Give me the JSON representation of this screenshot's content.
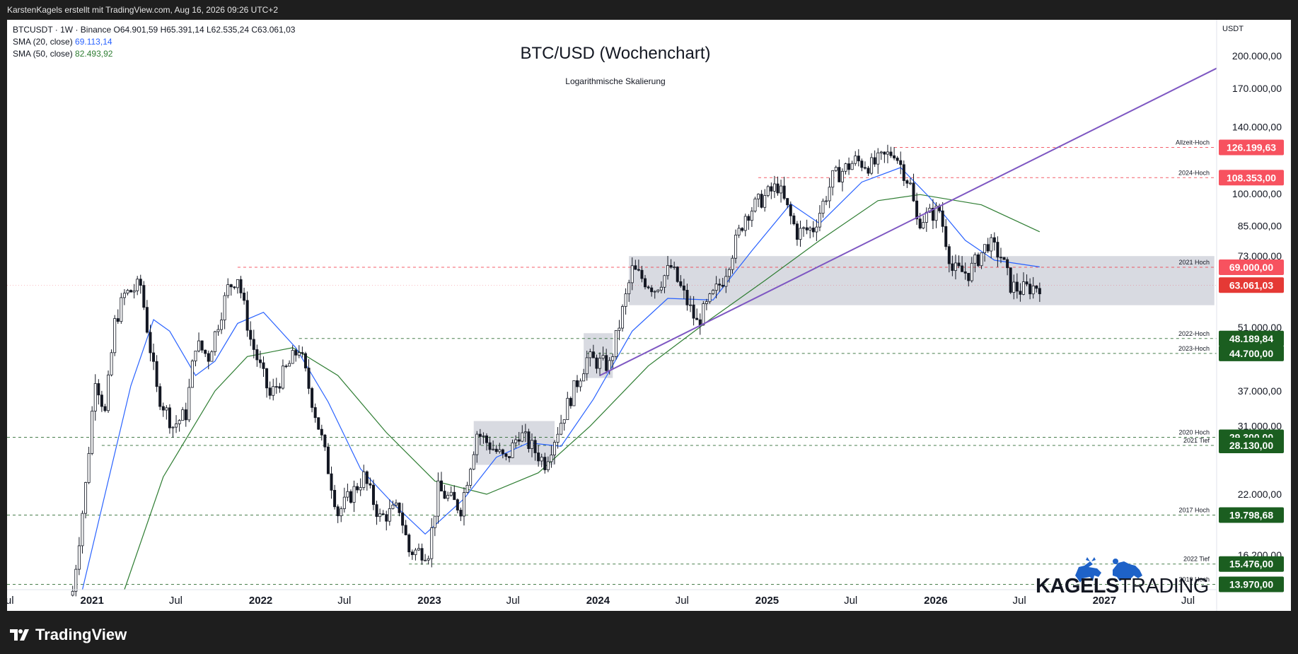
{
  "header": {
    "attribution": "KarstenKagels erstellt mit TradingView.com, Aug 16, 2026 09:26 UTC+2"
  },
  "legend": {
    "symbol_line": "BTCUSDT · 1W · Binance",
    "ohlc": {
      "open": "O64.901,59",
      "high": "H65.391,14",
      "low": "L62.535,24",
      "close": "C63.061,03"
    },
    "sma20_label": "SMA (20, close)",
    "sma20_value": "69.113,14",
    "sma50_label": "SMA (50, close)",
    "sma50_value": "82.493,92"
  },
  "colors": {
    "up": "#089981",
    "down": "#f23645",
    "candle": "#131722",
    "sma20": "#2962ff",
    "sma50": "#2e7d32",
    "trendline": "#7e57c2",
    "resistance": "#f23645",
    "support": "#1b5e20",
    "zone": "#d1d4dc"
  },
  "chart_data": {
    "type": "line",
    "title": "BTC/USD (Wochenchart)",
    "subtitle": "Logarithmische Skalierung",
    "scale": "log",
    "currency": "USDT",
    "price_axis_ticks": [
      200000,
      170000,
      140000,
      100000,
      85000,
      73000,
      51000,
      37000,
      31000,
      22000,
      16200
    ],
    "price_axis_tick_labels": [
      "200.000,00",
      "170.000,00",
      "140.000,00",
      "100.000,00",
      "85.000,00",
      "73.000,00",
      "51.000,00",
      "37.000,00",
      "31.000,00",
      "22.000,00",
      "16.200,00"
    ],
    "time_axis_ticks": [
      {
        "label": "Jul",
        "date": "2020-07-01",
        "bold": false
      },
      {
        "label": "2021",
        "date": "2021-01-01",
        "bold": true
      },
      {
        "label": "Jul",
        "date": "2021-07-01",
        "bold": false
      },
      {
        "label": "2022",
        "date": "2022-01-01",
        "bold": true
      },
      {
        "label": "Jul",
        "date": "2022-07-01",
        "bold": false
      },
      {
        "label": "2023",
        "date": "2023-01-01",
        "bold": true
      },
      {
        "label": "Jul",
        "date": "2023-07-01",
        "bold": false
      },
      {
        "label": "2024",
        "date": "2024-01-01",
        "bold": true
      },
      {
        "label": "Jul",
        "date": "2024-07-01",
        "bold": false
      },
      {
        "label": "2025",
        "date": "2025-01-01",
        "bold": true
      },
      {
        "label": "Jul",
        "date": "2025-07-01",
        "bold": false
      },
      {
        "label": "2026",
        "date": "2026-01-01",
        "bold": true
      },
      {
        "label": "Jul",
        "date": "2026-07-01",
        "bold": false
      },
      {
        "label": "2027",
        "date": "2027-01-01",
        "bold": true
      },
      {
        "label": "Jul",
        "date": "2027-07-01",
        "bold": false
      }
    ],
    "x_range": [
      "2020-07-01",
      "2027-09-01"
    ],
    "y_range": [
      13600,
      240000
    ],
    "price_path": [
      [
        "2020-11-20",
        13500
      ],
      [
        "2020-12-18",
        23000
      ],
      [
        "2021-01-08",
        40000
      ],
      [
        "2021-01-29",
        33000
      ],
      [
        "2021-02-19",
        52000
      ],
      [
        "2021-03-12",
        60000
      ],
      [
        "2021-04-16",
        63000
      ],
      [
        "2021-05-21",
        37000
      ],
      [
        "2021-06-25",
        31000
      ],
      [
        "2021-07-23",
        33000
      ],
      [
        "2021-08-13",
        47000
      ],
      [
        "2021-09-10",
        44000
      ],
      [
        "2021-10-22",
        62000
      ],
      [
        "2021-11-12",
        66000
      ],
      [
        "2021-12-10",
        48000
      ],
      [
        "2022-01-21",
        36000
      ],
      [
        "2022-03-25",
        46000
      ],
      [
        "2022-05-13",
        29000
      ],
      [
        "2022-06-17",
        20000
      ],
      [
        "2022-08-12",
        24000
      ],
      [
        "2022-09-16",
        19500
      ],
      [
        "2022-10-28",
        20500
      ],
      [
        "2022-11-18",
        16500
      ],
      [
        "2022-12-30",
        16500
      ],
      [
        "2023-01-20",
        22500
      ],
      [
        "2023-03-10",
        20500
      ],
      [
        "2023-04-14",
        30000
      ],
      [
        "2023-06-16",
        26000
      ],
      [
        "2023-07-14",
        30000
      ],
      [
        "2023-09-08",
        25800
      ],
      [
        "2023-10-27",
        34500
      ],
      [
        "2023-12-08",
        43500
      ],
      [
        "2024-01-26",
        42000
      ],
      [
        "2024-03-15",
        68000
      ],
      [
        "2024-05-03",
        62000
      ],
      [
        "2024-06-07",
        69000
      ],
      [
        "2024-08-02",
        52000
      ],
      [
        "2024-09-27",
        65000
      ],
      [
        "2024-11-15",
        90000
      ],
      [
        "2024-12-20",
        97000
      ],
      [
        "2025-01-24",
        104000
      ],
      [
        "2025-03-07",
        82000
      ],
      [
        "2025-04-11",
        84000
      ],
      [
        "2025-05-23",
        108000
      ],
      [
        "2025-07-11",
        118000
      ],
      [
        "2025-08-15",
        115000
      ],
      [
        "2025-10-03",
        124000
      ],
      [
        "2025-11-07",
        104000
      ],
      [
        "2025-11-21",
        87000
      ],
      [
        "2026-01-09",
        92000
      ],
      [
        "2026-02-06",
        68000
      ],
      [
        "2026-03-13",
        67000
      ],
      [
        "2026-04-24",
        78000
      ],
      [
        "2026-05-22",
        73000
      ],
      [
        "2026-06-12",
        63000
      ],
      [
        "2026-07-03",
        61500
      ],
      [
        "2026-08-14",
        63061
      ]
    ],
    "sma20": [
      [
        "2020-12-11",
        13600
      ],
      [
        "2021-01-29",
        22000
      ],
      [
        "2021-03-26",
        38000
      ],
      [
        "2021-05-14",
        53000
      ],
      [
        "2021-06-18",
        50000
      ],
      [
        "2021-08-13",
        40000
      ],
      [
        "2021-09-24",
        43000
      ],
      [
        "2021-11-12",
        52000
      ],
      [
        "2022-01-07",
        55000
      ],
      [
        "2022-03-18",
        46000
      ],
      [
        "2022-05-27",
        35000
      ],
      [
        "2022-08-05",
        25000
      ],
      [
        "2022-10-14",
        21000
      ],
      [
        "2022-12-23",
        18000
      ],
      [
        "2023-03-17",
        21500
      ],
      [
        "2023-05-26",
        26500
      ],
      [
        "2023-08-04",
        28500
      ],
      [
        "2023-10-13",
        28000
      ],
      [
        "2023-12-22",
        35500
      ],
      [
        "2024-03-15",
        50000
      ],
      [
        "2024-05-31",
        59000
      ],
      [
        "2024-09-06",
        58500
      ],
      [
        "2024-11-29",
        75000
      ],
      [
        "2025-02-21",
        95000
      ],
      [
        "2025-04-25",
        86000
      ],
      [
        "2025-07-25",
        106000
      ],
      [
        "2025-10-17",
        114000
      ],
      [
        "2025-12-19",
        98000
      ],
      [
        "2026-03-06",
        79000
      ],
      [
        "2026-05-08",
        71500
      ],
      [
        "2026-08-14",
        69113
      ]
    ],
    "sma50": [
      [
        "2021-03-12",
        13600
      ],
      [
        "2021-06-04",
        24000
      ],
      [
        "2021-09-24",
        37000
      ],
      [
        "2021-12-03",
        44000
      ],
      [
        "2022-03-11",
        46000
      ],
      [
        "2022-06-17",
        40000
      ],
      [
        "2022-09-30",
        30000
      ],
      [
        "2023-01-13",
        23500
      ],
      [
        "2023-05-05",
        22000
      ],
      [
        "2023-08-25",
        24500
      ],
      [
        "2023-12-15",
        31000
      ],
      [
        "2024-04-19",
        42000
      ],
      [
        "2024-08-30",
        53000
      ],
      [
        "2024-12-27",
        64500
      ],
      [
        "2025-04-25",
        79000
      ],
      [
        "2025-08-29",
        96500
      ],
      [
        "2025-11-28",
        99500
      ],
      [
        "2026-04-10",
        94500
      ],
      [
        "2026-08-14",
        82494
      ]
    ],
    "trendline": {
      "from": [
        "2024-01-05",
        40000
      ],
      "to": [
        "2027-09-01",
        188000
      ]
    },
    "zones": [
      {
        "from": "2023-04-07",
        "to": "2023-09-29",
        "low": 25500,
        "high": 31800
      },
      {
        "from": "2023-12-01",
        "to": "2024-02-02",
        "low": 39500,
        "high": 49500
      },
      {
        "from": "2024-03-08",
        "to": "2027-08-27",
        "low": 57000,
        "high": 73000
      }
    ],
    "levels": [
      {
        "name": "Allzeit-Hoch",
        "value": 126199.63,
        "label": "126.199,63",
        "from": "2025-10-03",
        "style": "resistance"
      },
      {
        "name": "2024-Hoch",
        "value": 108353.0,
        "label": "108.353,00",
        "from": "2024-12-13",
        "style": "resistance"
      },
      {
        "name": "2021 Hoch",
        "value": 69000.0,
        "label": "69.000,00",
        "from": "2021-11-12",
        "style": "resistance"
      },
      {
        "name": "2022-Hoch",
        "value": 48189.84,
        "label": "48.189,84",
        "from": "2022-03-25",
        "style": "support"
      },
      {
        "name": "2023-Hoch",
        "value": 44700.0,
        "label": "44.700,00",
        "from": "2023-12-08",
        "style": "support"
      },
      {
        "name": "2020 Hoch",
        "value": 29300.0,
        "label": "29.300,00",
        "from": "2020-07-01",
        "style": "support"
      },
      {
        "name": "2021 Tief",
        "value": 28130.0,
        "label": "28.130,00",
        "from": "2021-01-22",
        "style": "support"
      },
      {
        "name": "2017 Hoch",
        "value": 19798.68,
        "label": "19.798,68",
        "from": "2020-07-01",
        "style": "support"
      },
      {
        "name": "2022 Tief",
        "value": 15476.0,
        "label": "15.476,00",
        "from": "2022-11-18",
        "style": "support"
      },
      {
        "name": "2019 Hoch",
        "value": 13970.0,
        "label": "13.970,00",
        "from": "2020-07-01",
        "style": "support"
      }
    ],
    "last_price": {
      "value": 63061.03,
      "label": "63.061,03"
    }
  },
  "branding": {
    "brand_bold": "KAGELS",
    "brand_light": "TRADING",
    "tradingview": "TradingView"
  }
}
